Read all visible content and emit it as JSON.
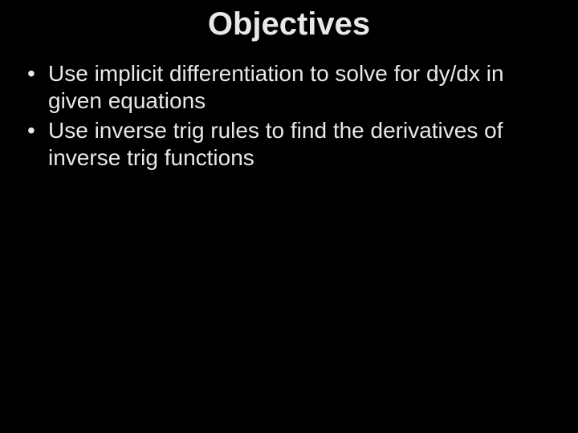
{
  "slide": {
    "title": "Objectives",
    "title_fontsize": 40,
    "title_font_weight": "bold",
    "bullets": [
      "Use implicit differentiation to solve for dy/dx in given equations",
      "Use inverse trig rules to find the derivatives of inverse trig functions"
    ],
    "body_fontsize": 28,
    "text_color": "#e8e8e8",
    "background_color": "#000000",
    "font_family": "Arial"
  }
}
